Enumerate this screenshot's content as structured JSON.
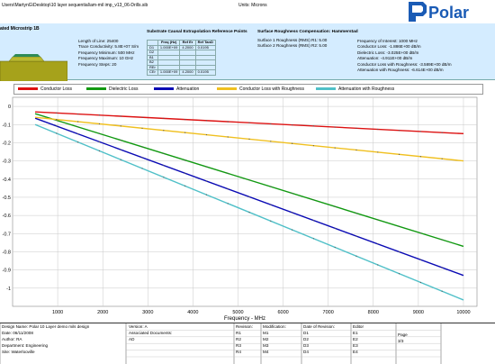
{
  "header": {
    "file_path": "Users\\MartynG\\Desktop\\10 layer sequential\\am-mil imp_v13_06-Drills.sib",
    "units": "Units: Microns",
    "logo_text": "Polar",
    "structure_name": "ated Microstrip 1B",
    "params": [
      "Length of Line: 25400",
      "Trace Conductivity: 5.8E+07 S/m",
      "Frequency Minimum: 500 MHz",
      "Frequency Maximum: 10 GHz",
      "Frequency Steps: 20"
    ],
    "substrate_title": "Substrate Causal Extrapolation Reference Points",
    "substrate_columns": [
      "",
      "Freq (Hz)",
      "Ref Er",
      "Ref TanD"
    ],
    "substrate_rows": [
      [
        "D1",
        "1.000E+09",
        "4.2000",
        "0.0195"
      ],
      [
        "D2",
        "",
        "",
        ""
      ],
      [
        "B1",
        "",
        "",
        ""
      ],
      [
        "B2",
        "",
        "",
        ""
      ],
      [
        "REr",
        "",
        "",
        ""
      ],
      [
        "CEr",
        "1.000E+09",
        "4.2000",
        "0.0195"
      ]
    ],
    "roughness_title": "Surface Roughness Compensation: Hammerstad",
    "roughness": [
      "Surface 1 Roughness (RMS) R1: 5.00",
      "Surface 2 Roughness (RMS) R2: 5.00"
    ],
    "results": [
      "Frequency of Interest: 1000 MHz",
      "Conductor Loss: -1.886E+00 dB/m",
      "Dielectric Loss: -3.025E+00 dB/m",
      "Attenuation: -4.911E+00 dB/m",
      "Conductor Loss with Roughness: -3.589E+00 dB/m",
      "Attenuation with Roughness: -6.614E+00 dB/m"
    ]
  },
  "chart_data": {
    "type": "line",
    "title": "",
    "xlabel": "Frequency - MHz",
    "ylabel": "",
    "xlim": [
      0,
      10300
    ],
    "ylim": [
      -1.1,
      0.05
    ],
    "x_ticks": [
      1000,
      2000,
      3000,
      4000,
      5000,
      6000,
      7000,
      8000,
      9000,
      10000
    ],
    "y_ticks": [
      0,
      -0.1,
      -0.2,
      -0.3,
      -0.4,
      -0.5,
      -0.6,
      -0.7,
      -0.8,
      -0.9,
      -1
    ],
    "y_tick_labels": [
      "0",
      "-0.1",
      "-0.2",
      "-0.3",
      "-0.4",
      "-0.5",
      "-0.6",
      "-0.7",
      "-0.8",
      "-0.9",
      "-1"
    ],
    "grid": true,
    "legend_position": "top",
    "x": [
      500,
      10000
    ],
    "series": [
      {
        "name": "Conductor Loss",
        "color": "#dd1111",
        "values": [
          -0.03,
          -0.15
        ]
      },
      {
        "name": "Dielectric Loss",
        "color": "#119911",
        "values": [
          -0.04,
          -0.77
        ]
      },
      {
        "name": "Attenuation",
        "color": "#0a0ab4",
        "values": [
          -0.065,
          -0.93
        ]
      },
      {
        "name": "Conductor Loss with Roughness",
        "color": "#f0c020",
        "values": [
          -0.06,
          -0.3
        ]
      },
      {
        "name": "Attenuation with Roughness",
        "color": "#50c0c8",
        "values": [
          -0.1,
          -1.065
        ]
      }
    ]
  },
  "footer": {
    "cells": [
      "Design Name: Polar 10 Layer demo mils design",
      "Date: 06/11/2008",
      "Author: RA",
      "Department: Engineering",
      "Site: Waterlooville",
      "Version: A",
      "Associated Documents:",
      "AD",
      "Revision:",
      "R1",
      "R2",
      "R3",
      "R4",
      "Modification:",
      "M1",
      "M2",
      "M3",
      "M4",
      "Date of Revision:",
      "D1",
      "D2",
      "D3",
      "D4",
      "Editor",
      "E1",
      "E2",
      "E3",
      "E4",
      "Page",
      "3/3"
    ]
  }
}
